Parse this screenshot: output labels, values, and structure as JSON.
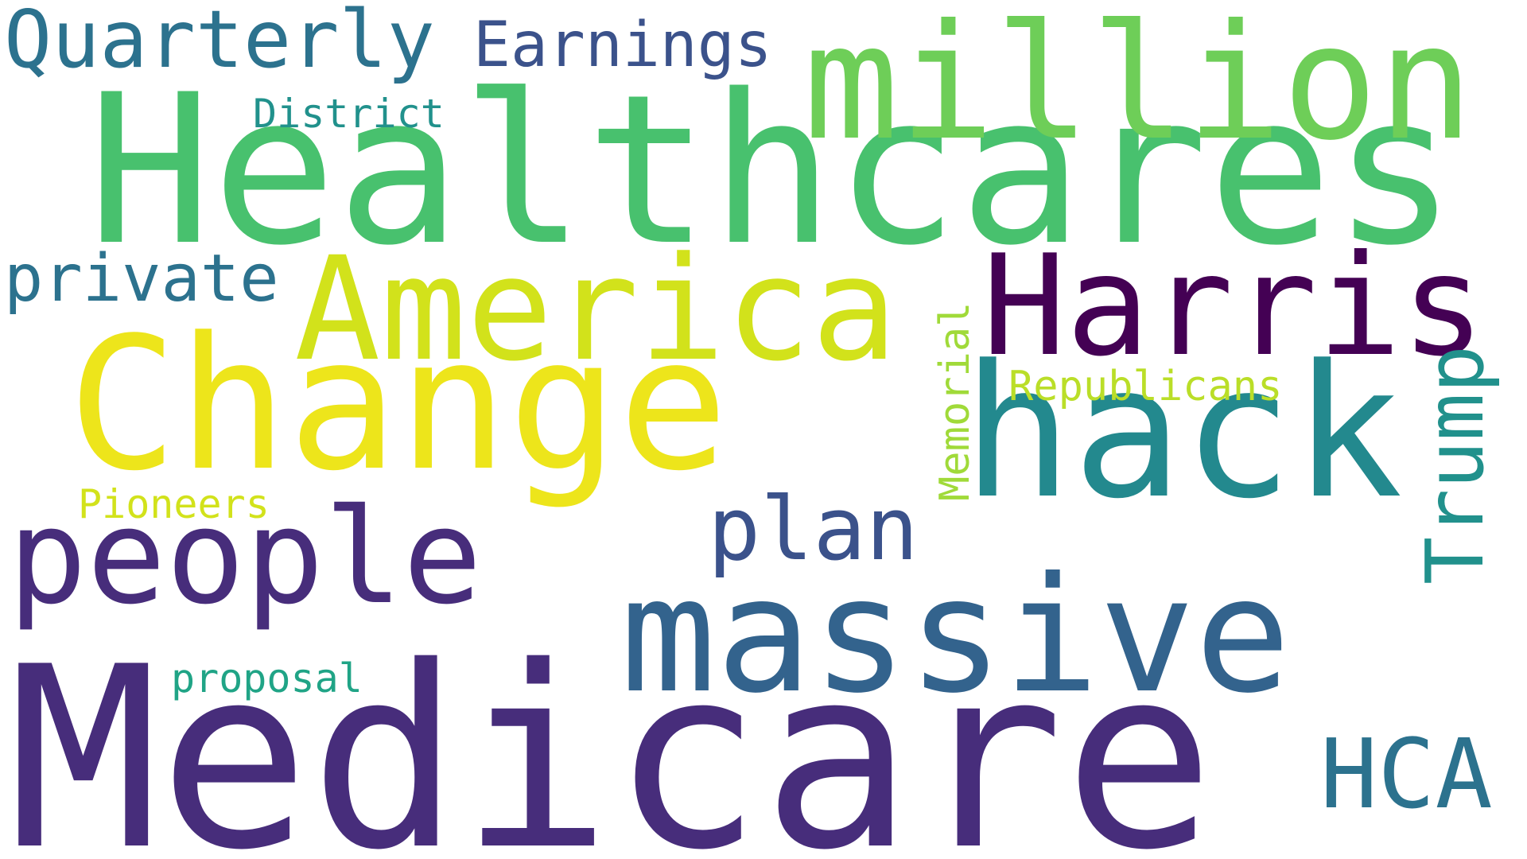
{
  "words": {
    "medicare": {
      "text": "Medicare",
      "color": "#472d7b"
    },
    "healthcares": {
      "text": "Healthcares",
      "color": "#48c16e"
    },
    "million": {
      "text": "million",
      "color": "#6ece58"
    },
    "change": {
      "text": "Change",
      "color": "#ede51b"
    },
    "hack": {
      "text": "hack",
      "color": "#23898e"
    },
    "massive": {
      "text": "massive",
      "color": "#33638d"
    },
    "america": {
      "text": "America",
      "color": "#d2e21b"
    },
    "harris": {
      "text": "Harris",
      "color": "#440154"
    },
    "people": {
      "text": "people",
      "color": "#472d7b"
    },
    "plan": {
      "text": "plan",
      "color": "#3b528b"
    },
    "quarterly": {
      "text": "Quarterly",
      "color": "#2c728e"
    },
    "earnings": {
      "text": "Earnings",
      "color": "#3b528b"
    },
    "private": {
      "text": "private",
      "color": "#2c728e"
    },
    "hca": {
      "text": "HCA",
      "color": "#2c728e"
    },
    "trump": {
      "text": "Trump",
      "color": "#21918c"
    },
    "memorial": {
      "text": "Memorial",
      "color": "#a0da39"
    },
    "republicans": {
      "text": "Republicans",
      "color": "#bade28"
    },
    "district": {
      "text": "District",
      "color": "#21918c"
    },
    "pioneers": {
      "text": "Pioneers",
      "color": "#d2e21b"
    },
    "proposal": {
      "text": "proposal",
      "color": "#20a486"
    }
  }
}
